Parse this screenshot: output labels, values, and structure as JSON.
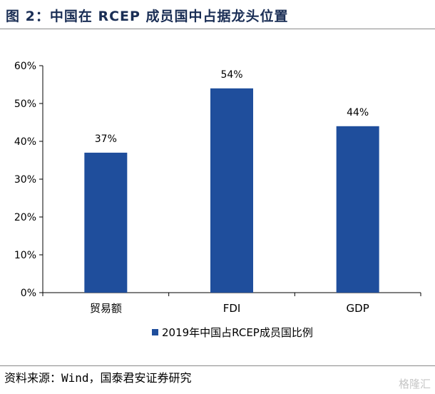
{
  "header": {
    "title": "图 2：中国在 RCEP 成员国中占据龙头位置"
  },
  "chart_data": {
    "type": "bar",
    "categories": [
      "贸易额",
      "FDI",
      "GDP"
    ],
    "series": [
      {
        "name": "2019年中国占RCEP成员国比例",
        "values": [
          37,
          54,
          44
        ]
      }
    ],
    "value_labels": [
      "37%",
      "54%",
      "44%"
    ],
    "ylim": [
      0,
      60
    ],
    "yticks": [
      0,
      10,
      20,
      30,
      40,
      50,
      60
    ],
    "ytick_labels": [
      "0%",
      "10%",
      "20%",
      "30%",
      "40%",
      "50%",
      "60%"
    ],
    "grid": false,
    "legend_position": "bottom",
    "bar_color": "#1f4e9c"
  },
  "footer": {
    "source": "资料来源：Wind，国泰君安证券研究",
    "watermark": "格隆汇"
  }
}
